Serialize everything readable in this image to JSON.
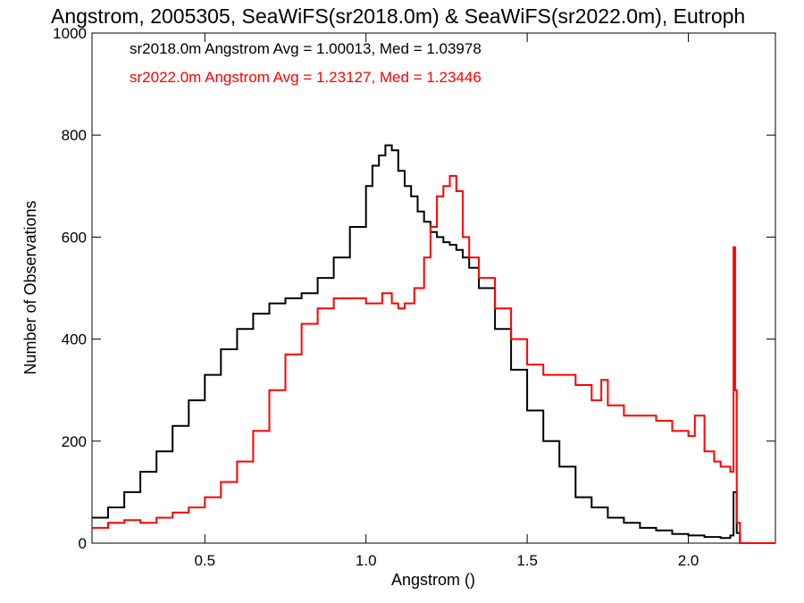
{
  "chart_data": {
    "type": "line",
    "title": "Angstrom, 2005305, SeaWiFS(sr2018.0m) & SeaWiFS(sr2022.0m), Eutroph",
    "xlabel": "Angstrom ()",
    "ylabel": "Number of Observations",
    "xlim": [
      0.15,
      2.27
    ],
    "ylim": [
      0,
      1000
    ],
    "xticks": [
      0.5,
      1.0,
      1.5,
      2.0
    ],
    "xtick_labels": [
      "0.5",
      "1.0",
      "1.5",
      "2.0"
    ],
    "yticks": [
      0,
      200,
      400,
      600,
      800,
      1000
    ],
    "ytick_labels": [
      "0",
      "200",
      "400",
      "600",
      "800",
      "1000"
    ],
    "grid": false,
    "legend_position": "top-left",
    "step_style": "histogram",
    "series": [
      {
        "name": "sr2018.0m",
        "color": "#000000",
        "label": "sr2018.0m Angstrom Avg = 1.00013, Med = 1.03978",
        "x": [
          0.15,
          0.2,
          0.25,
          0.3,
          0.35,
          0.4,
          0.45,
          0.5,
          0.55,
          0.6,
          0.65,
          0.7,
          0.75,
          0.8,
          0.85,
          0.9,
          0.95,
          1.0,
          1.02,
          1.04,
          1.06,
          1.08,
          1.1,
          1.12,
          1.14,
          1.16,
          1.18,
          1.2,
          1.22,
          1.24,
          1.26,
          1.28,
          1.3,
          1.32,
          1.35,
          1.4,
          1.45,
          1.5,
          1.55,
          1.6,
          1.65,
          1.7,
          1.75,
          1.8,
          1.85,
          1.9,
          1.95,
          2.0,
          2.05,
          2.1,
          2.13,
          2.14,
          2.15,
          2.16,
          2.2,
          2.27
        ],
        "y": [
          50,
          70,
          100,
          140,
          180,
          230,
          280,
          330,
          380,
          420,
          450,
          470,
          480,
          490,
          520,
          560,
          620,
          700,
          740,
          760,
          780,
          770,
          730,
          700,
          680,
          650,
          630,
          610,
          600,
          590,
          585,
          575,
          560,
          540,
          500,
          420,
          340,
          260,
          200,
          150,
          90,
          70,
          50,
          40,
          30,
          25,
          18,
          15,
          12,
          10,
          15,
          100,
          20,
          0,
          0,
          0
        ]
      },
      {
        "name": "sr2022.0m",
        "color": "#ff0000",
        "label": "sr2022.0m Angstrom Avg = 1.23127, Med = 1.23446",
        "x": [
          0.15,
          0.2,
          0.25,
          0.3,
          0.35,
          0.4,
          0.45,
          0.5,
          0.55,
          0.6,
          0.65,
          0.7,
          0.75,
          0.8,
          0.85,
          0.9,
          0.95,
          1.0,
          1.05,
          1.08,
          1.1,
          1.12,
          1.15,
          1.18,
          1.2,
          1.22,
          1.24,
          1.26,
          1.28,
          1.3,
          1.32,
          1.35,
          1.4,
          1.45,
          1.5,
          1.55,
          1.6,
          1.65,
          1.7,
          1.73,
          1.75,
          1.8,
          1.85,
          1.9,
          1.95,
          2.0,
          2.02,
          2.05,
          2.08,
          2.1,
          2.13,
          2.14,
          2.145,
          2.15,
          2.16,
          2.2,
          2.27
        ],
        "y": [
          30,
          40,
          45,
          40,
          50,
          60,
          70,
          90,
          120,
          160,
          220,
          300,
          370,
          430,
          460,
          480,
          480,
          470,
          490,
          470,
          460,
          470,
          500,
          560,
          620,
          680,
          700,
          720,
          690,
          600,
          560,
          520,
          460,
          400,
          350,
          330,
          330,
          310,
          280,
          320,
          270,
          250,
          250,
          240,
          220,
          210,
          250,
          180,
          160,
          150,
          140,
          580,
          300,
          40,
          0,
          0,
          0
        ]
      }
    ]
  }
}
